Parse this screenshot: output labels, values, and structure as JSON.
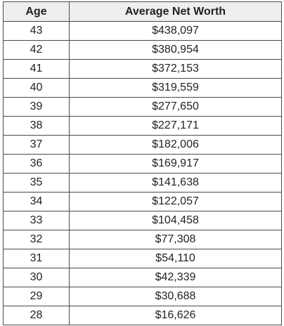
{
  "table": {
    "headers": [
      "Age",
      "Average Net Worth"
    ],
    "rows": [
      [
        "43",
        "$438,097"
      ],
      [
        "42",
        "$380,954"
      ],
      [
        "41",
        "$372,153"
      ],
      [
        "40",
        "$319,559"
      ],
      [
        "39",
        "$277,650"
      ],
      [
        "38",
        "$227,171"
      ],
      [
        "37",
        "$182,006"
      ],
      [
        "36",
        "$169,917"
      ],
      [
        "35",
        "$141,638"
      ],
      [
        "34",
        "$122,057"
      ],
      [
        "33",
        "$104,458"
      ],
      [
        "32",
        "$77,308"
      ],
      [
        "31",
        "$54,110"
      ],
      [
        "30",
        "$42,339"
      ],
      [
        "29",
        "$30,688"
      ],
      [
        "28",
        "$16,626"
      ]
    ]
  }
}
